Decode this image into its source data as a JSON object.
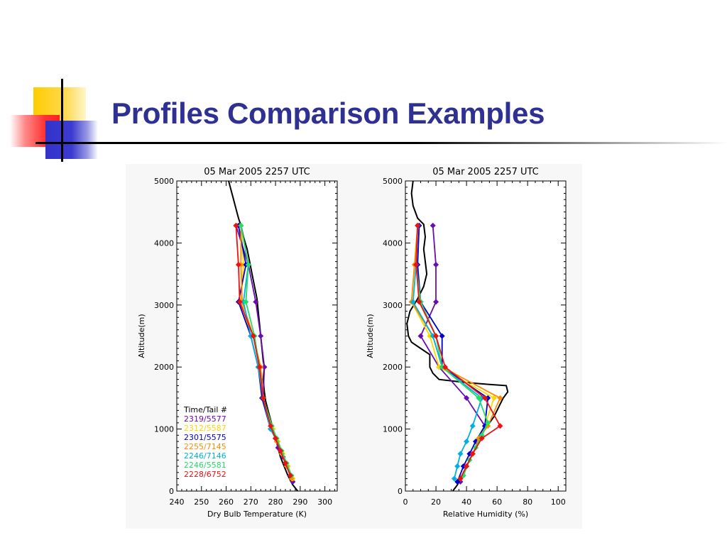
{
  "slide": {
    "title": "Profiles Comparison Examples",
    "title_color": "#2e3192",
    "accent_colors": {
      "yellow": "#ffcc00",
      "red": "#ff3333",
      "blue": "#3333cc"
    }
  },
  "chart_data": [
    {
      "type": "line",
      "title": "05 Mar 2005 2257 UTC",
      "xlabel": "Dry Bulb Temperature (K)",
      "ylabel": "Altitude(m)",
      "xlim": [
        240,
        305
      ],
      "ylim": [
        0,
        5000
      ],
      "xticks": [
        "240",
        "250",
        "260",
        "270",
        "280",
        "290",
        "300"
      ],
      "yticks": [
        "0",
        "1000",
        "2000",
        "3000",
        "4000",
        "5000"
      ],
      "legend": {
        "title": "Time/Tail #",
        "placement": "bottom-left"
      },
      "series": [
        {
          "name": "",
          "color": "#000000",
          "marker": "none",
          "points": [
            [
              261,
              5000
            ],
            [
              262,
              4850
            ],
            [
              263,
              4700
            ],
            [
              264,
              4550
            ],
            [
              265,
              4400
            ],
            [
              266,
              4280
            ],
            [
              267,
              4100
            ],
            [
              268.5,
              3900
            ],
            [
              269.5,
              3700
            ],
            [
              270.5,
              3500
            ],
            [
              271.5,
              3300
            ],
            [
              272.5,
              3100
            ],
            [
              273,
              2900
            ],
            [
              273.5,
              2700
            ],
            [
              274,
              2500
            ],
            [
              274.5,
              2300
            ],
            [
              275,
              2100
            ],
            [
              275.5,
              2000
            ],
            [
              275,
              1800
            ],
            [
              275.5,
              1600
            ],
            [
              276,
              1450
            ],
            [
              277,
              1300
            ],
            [
              278,
              1150
            ],
            [
              279,
              1000
            ],
            [
              280,
              850
            ],
            [
              281,
              700
            ],
            [
              282,
              550
            ],
            [
              283.5,
              400
            ],
            [
              285,
              250
            ],
            [
              287,
              100
            ],
            [
              289,
              0
            ]
          ]
        },
        {
          "name": "2319/5577",
          "color": "#6a0dad",
          "marker": "diamond",
          "points": [
            [
              264,
              4280
            ],
            [
              269,
              3650
            ],
            [
              272,
              3050
            ],
            [
              274,
              2500
            ],
            [
              275.5,
              2000
            ],
            [
              275,
              1500
            ],
            [
              278,
              1000
            ],
            [
              280,
              850
            ],
            [
              281,
              700
            ],
            [
              283,
              550
            ],
            [
              285,
              400
            ],
            [
              287,
              150
            ]
          ]
        },
        {
          "name": "2312/5587",
          "color": "#ffd700",
          "marker": "diamond",
          "points": [
            [
              266,
              4280
            ],
            [
              267,
              3650
            ],
            [
              266,
              3050
            ],
            [
              270,
              2500
            ],
            [
              273,
              2000
            ],
            [
              275,
              1500
            ],
            [
              279,
              1000
            ],
            [
              281,
              800
            ],
            [
              283,
              600
            ],
            [
              285,
              400
            ],
            [
              287,
              200
            ]
          ]
        },
        {
          "name": "2301/5575",
          "color": "#0000cc",
          "marker": "diamond",
          "points": [
            [
              265,
              4280
            ],
            [
              268,
              3650
            ],
            [
              265,
              3050
            ],
            [
              270,
              2500
            ],
            [
              273,
              2000
            ],
            [
              274.5,
              1500
            ],
            [
              278,
              1000
            ],
            [
              280,
              850
            ],
            [
              282,
              650
            ],
            [
              284,
              450
            ],
            [
              286,
              250
            ]
          ]
        },
        {
          "name": "2255/7145",
          "color": "#ff8c00",
          "marker": "diamond",
          "points": [
            [
              266,
              4280
            ],
            [
              266,
              3650
            ],
            [
              266.5,
              3050
            ],
            [
              271,
              2500
            ],
            [
              274,
              2000
            ],
            [
              275,
              1500
            ],
            [
              278,
              1000
            ],
            [
              280.5,
              800
            ],
            [
              282.5,
              600
            ],
            [
              284.5,
              400
            ],
            [
              286.5,
              200
            ]
          ]
        },
        {
          "name": "2246/7146",
          "color": "#00b0e0",
          "marker": "diamond",
          "points": [
            [
              266,
              4280
            ],
            [
              269,
              3650
            ],
            [
              267,
              3050
            ],
            [
              270,
              2500
            ],
            [
              273,
              2000
            ],
            [
              275,
              1500
            ],
            [
              278,
              1000
            ],
            [
              280,
              850
            ],
            [
              282,
              650
            ],
            [
              284,
              450
            ],
            [
              286,
              250
            ]
          ]
        },
        {
          "name": "2246/5581",
          "color": "#22dd66",
          "marker": "diamond",
          "points": [
            [
              266,
              4280
            ],
            [
              269,
              3650
            ],
            [
              268,
              3050
            ],
            [
              271.5,
              2500
            ],
            [
              273.5,
              2000
            ],
            [
              275,
              1500
            ],
            [
              278.5,
              1050
            ],
            [
              280.5,
              850
            ],
            [
              282.5,
              650
            ],
            [
              284.5,
              450
            ],
            [
              286.5,
              250
            ]
          ]
        },
        {
          "name": "2228/6752",
          "color": "#ee1111",
          "marker": "diamond",
          "points": [
            [
              264,
              4280
            ],
            [
              265,
              3650
            ],
            [
              265.5,
              3050
            ],
            [
              271,
              2500
            ],
            [
              273.5,
              2000
            ],
            [
              275,
              1500
            ],
            [
              278,
              1050
            ],
            [
              280,
              850
            ],
            [
              282,
              650
            ],
            [
              284,
              450
            ],
            [
              286,
              250
            ]
          ]
        }
      ]
    },
    {
      "type": "line",
      "title": "05 Mar 2005 2257 UTC",
      "xlabel": "Relative Humidity (%)",
      "ylabel": "Altitude(m)",
      "xlim": [
        0,
        105
      ],
      "ylim": [
        0,
        5000
      ],
      "xticks": [
        "0",
        "20",
        "40",
        "60",
        "80",
        "100"
      ],
      "yticks": [
        "0",
        "1000",
        "2000",
        "3000",
        "4000",
        "5000"
      ],
      "series": [
        {
          "name": "",
          "color": "#000000",
          "marker": "none",
          "points": [
            [
              5,
              5000
            ],
            [
              4,
              4800
            ],
            [
              5,
              4600
            ],
            [
              8,
              4400
            ],
            [
              12,
              4300
            ],
            [
              13,
              4100
            ],
            [
              12,
              3900
            ],
            [
              13,
              3700
            ],
            [
              14,
              3500
            ],
            [
              12,
              3300
            ],
            [
              8,
              3100
            ],
            [
              3,
              2900
            ],
            [
              1,
              2700
            ],
            [
              2,
              2500
            ],
            [
              4,
              2400
            ],
            [
              10,
              2300
            ],
            [
              16,
              2200
            ],
            [
              16,
              2000
            ],
            [
              18,
              1900
            ],
            [
              22,
              1800
            ],
            [
              40,
              1750
            ],
            [
              55,
              1720
            ],
            [
              66,
              1700
            ],
            [
              67,
              1600
            ],
            [
              64,
              1500
            ],
            [
              62,
              1400
            ],
            [
              60,
              1300
            ],
            [
              58,
              1200
            ],
            [
              55,
              1100
            ],
            [
              52,
              1000
            ],
            [
              50,
              900
            ],
            [
              48,
              800
            ],
            [
              46,
              700
            ],
            [
              44,
              600
            ],
            [
              42,
              500
            ],
            [
              40,
              400
            ],
            [
              38,
              300
            ],
            [
              36,
              200
            ],
            [
              34,
              100
            ],
            [
              31,
              0
            ]
          ]
        },
        {
          "name": "2319/5577",
          "color": "#6a0dad",
          "marker": "diamond",
          "points": [
            [
              18,
              4280
            ],
            [
              20,
              3650
            ],
            [
              20,
              3050
            ],
            [
              10,
              2500
            ],
            [
              22,
              2000
            ],
            [
              40,
              1500
            ],
            [
              52,
              1050
            ],
            [
              48,
              850
            ],
            [
              44,
              600
            ],
            [
              40,
              400
            ],
            [
              36,
              150
            ]
          ]
        },
        {
          "name": "2312/5587",
          "color": "#ffd700",
          "marker": "diamond",
          "points": [
            [
              8,
              4280
            ],
            [
              6,
              3650
            ],
            [
              4,
              3050
            ],
            [
              16,
              2500
            ],
            [
              22,
              2000
            ],
            [
              58,
              1500
            ],
            [
              52,
              1050
            ],
            [
              48,
              850
            ],
            [
              44,
              600
            ],
            [
              40,
              400
            ],
            [
              36,
              200
            ]
          ]
        },
        {
          "name": "2301/5575",
          "color": "#0000cc",
          "marker": "diamond",
          "points": [
            [
              9,
              4280
            ],
            [
              8,
              3650
            ],
            [
              10,
              3050
            ],
            [
              24,
              2500
            ],
            [
              24,
              2000
            ],
            [
              54,
              1500
            ],
            [
              52,
              1050
            ],
            [
              46,
              800
            ],
            [
              42,
              600
            ],
            [
              38,
              400
            ],
            [
              34,
              150
            ]
          ]
        },
        {
          "name": "2255/7145",
          "color": "#ff8c00",
          "marker": "diamond",
          "points": [
            [
              8,
              4280
            ],
            [
              6,
              3650
            ],
            [
              4,
              3050
            ],
            [
              18,
              2500
            ],
            [
              24,
              2000
            ],
            [
              62,
              1500
            ],
            [
              54,
              1050
            ],
            [
              48,
              850
            ],
            [
              44,
              600
            ],
            [
              40,
              400
            ],
            [
              36,
              200
            ]
          ]
        },
        {
          "name": "2246/7146",
          "color": "#00b0e0",
          "marker": "diamond",
          "points": [
            [
              8,
              4280
            ],
            [
              7,
              3650
            ],
            [
              5,
              3050
            ],
            [
              18,
              2500
            ],
            [
              24,
              2000
            ],
            [
              50,
              1500
            ],
            [
              44,
              1050
            ],
            [
              40,
              800
            ],
            [
              36,
              600
            ],
            [
              34,
              400
            ],
            [
              32,
              200
            ]
          ]
        },
        {
          "name": "2246/5581",
          "color": "#22dd66",
          "marker": "diamond",
          "points": [
            [
              8,
              4280
            ],
            [
              7,
              3650
            ],
            [
              10,
              3050
            ],
            [
              20,
              2500
            ],
            [
              24,
              2000
            ],
            [
              48,
              1500
            ],
            [
              54,
              1100
            ],
            [
              50,
              900
            ],
            [
              46,
              700
            ],
            [
              42,
              500
            ],
            [
              38,
              250
            ]
          ]
        },
        {
          "name": "2228/6752",
          "color": "#ee1111",
          "marker": "diamond",
          "points": [
            [
              8,
              4280
            ],
            [
              7,
              3650
            ],
            [
              9,
              3050
            ],
            [
              20,
              2500
            ],
            [
              26,
              2000
            ],
            [
              52,
              1500
            ],
            [
              62,
              1050
            ],
            [
              50,
              850
            ],
            [
              44,
              600
            ],
            [
              40,
              400
            ],
            [
              36,
              200
            ]
          ]
        }
      ]
    }
  ]
}
